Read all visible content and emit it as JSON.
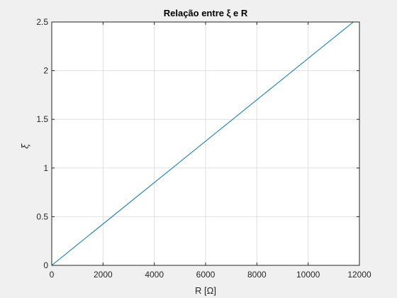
{
  "chart_data": {
    "type": "line",
    "title": "Relação entre ξ e R",
    "xlabel": "R [Ω]",
    "ylabel": "ξ",
    "xlim": [
      0,
      12000
    ],
    "ylim": [
      0,
      2.5
    ],
    "grid": true,
    "x_ticks": [
      "0",
      "2000",
      "4000",
      "6000",
      "8000",
      "10000",
      "12000"
    ],
    "y_ticks": [
      "0",
      "0.5",
      "1",
      "1.5",
      "2",
      "2.5"
    ],
    "x_tick_values": [
      0,
      2000,
      4000,
      6000,
      8000,
      10000,
      12000
    ],
    "y_tick_values": [
      0,
      0.5,
      1,
      1.5,
      2,
      2.5
    ],
    "series": [
      {
        "color": "#0072bd",
        "x": [
          0,
          11760
        ],
        "y": [
          0,
          2.5
        ]
      }
    ]
  }
}
